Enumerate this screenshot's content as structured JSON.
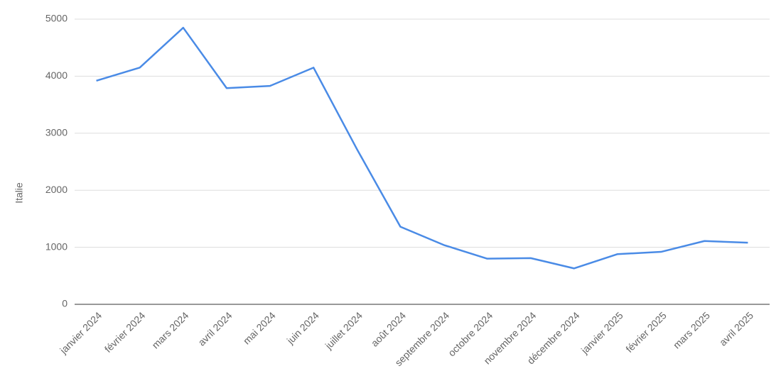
{
  "chart_data": {
    "type": "line",
    "y_label": "Italie",
    "categories": [
      "janvier 2024",
      "février 2024",
      "mars 2024",
      "avril 2024",
      "mai 2024",
      "juin 2024",
      "juillet 2024",
      "août 2024",
      "septembre 2024",
      "octobre 2024",
      "novembre 2024",
      "décembre 2024",
      "janvier 2025",
      "février 2025",
      "mars 2025",
      "avril 2025"
    ],
    "series": [
      {
        "name": "Italie",
        "color": "#4a8be6",
        "values": [
          3920,
          4150,
          4850,
          3790,
          3830,
          4150,
          2720,
          1360,
          1040,
          800,
          810,
          630,
          880,
          920,
          1110,
          1080
        ]
      }
    ],
    "ylim": [
      0,
      5000
    ],
    "yticks": [
      0,
      1000,
      2000,
      3000,
      4000,
      5000
    ],
    "grid": true
  }
}
